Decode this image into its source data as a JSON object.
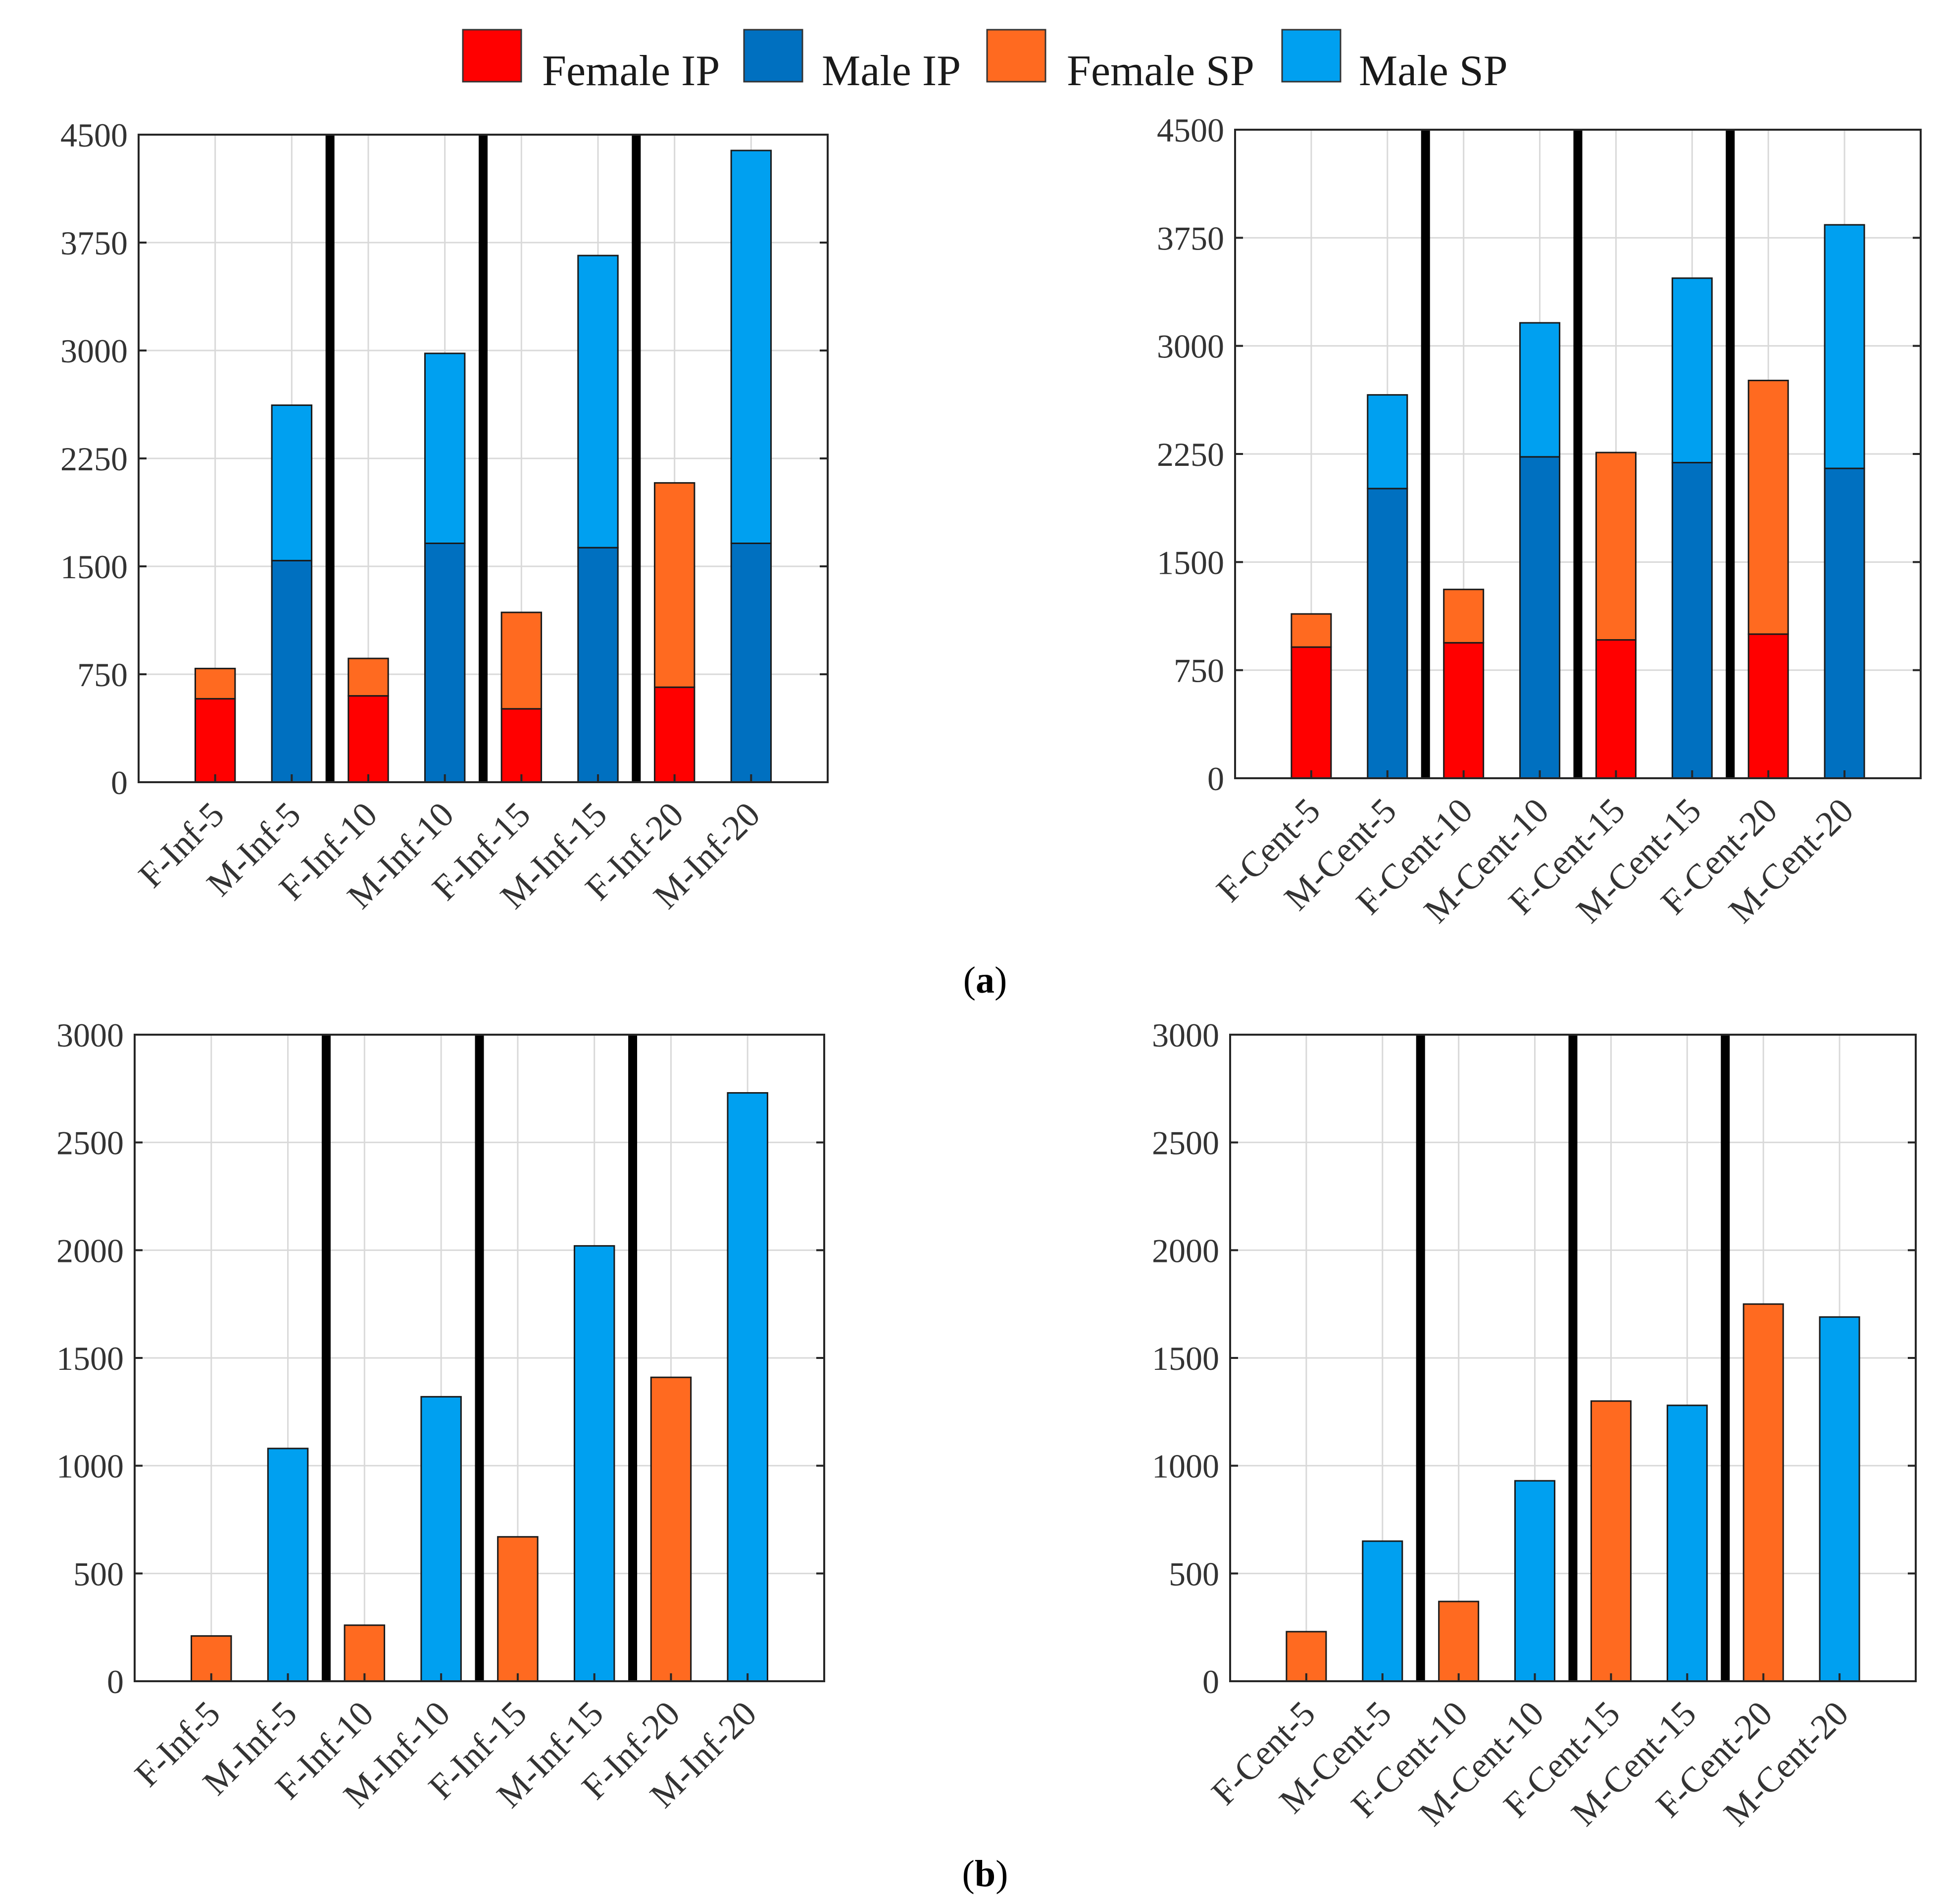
{
  "legend": [
    {
      "key": "female_ip",
      "label": "Female IP",
      "color": "#ff0000"
    },
    {
      "key": "male_ip",
      "label": "Male IP",
      "color": "#0070c0"
    },
    {
      "key": "female_sp",
      "label": "Female SP",
      "color": "#ff6a20"
    },
    {
      "key": "male_sp",
      "label": "Male SP",
      "color": "#00a0f0"
    }
  ],
  "panel_labels": {
    "a_open": "(",
    "a_letter": "a",
    "a_close": ")",
    "b_open": "(",
    "b_letter": "b",
    "b_close": ")"
  },
  "chart_data": [
    {
      "id": "a-left",
      "type": "bar",
      "stacked": true,
      "categories": [
        "F-Inf-5",
        "M-Inf-5",
        "F-Inf-10",
        "M-Inf-10",
        "F-Inf-15",
        "M-Inf-15",
        "F-Inf-20",
        "M-Inf-20"
      ],
      "ylim": [
        0,
        4500
      ],
      "yticks": [
        0,
        750,
        1500,
        2250,
        3000,
        3750,
        4500
      ],
      "grid": true,
      "separators_after": [
        1,
        3,
        5
      ],
      "bars": [
        {
          "segments": [
            {
              "series": "female_ip",
              "value": 580
            },
            {
              "series": "female_sp",
              "value": 210
            }
          ]
        },
        {
          "segments": [
            {
              "series": "male_ip",
              "value": 1540
            },
            {
              "series": "male_sp",
              "value": 1080
            }
          ]
        },
        {
          "segments": [
            {
              "series": "female_ip",
              "value": 600
            },
            {
              "series": "female_sp",
              "value": 260
            }
          ]
        },
        {
          "segments": [
            {
              "series": "male_ip",
              "value": 1660
            },
            {
              "series": "male_sp",
              "value": 1320
            }
          ]
        },
        {
          "segments": [
            {
              "series": "female_ip",
              "value": 510
            },
            {
              "series": "female_sp",
              "value": 670
            }
          ]
        },
        {
          "segments": [
            {
              "series": "male_ip",
              "value": 1630
            },
            {
              "series": "male_sp",
              "value": 2030
            }
          ]
        },
        {
          "segments": [
            {
              "series": "female_ip",
              "value": 660
            },
            {
              "series": "female_sp",
              "value": 1420
            }
          ]
        },
        {
          "segments": [
            {
              "series": "male_ip",
              "value": 1660
            },
            {
              "series": "male_sp",
              "value": 2730
            }
          ]
        }
      ]
    },
    {
      "id": "a-right",
      "type": "bar",
      "stacked": true,
      "categories": [
        "F-Cent-5",
        "M-Cent-5",
        "F-Cent-10",
        "M-Cent-10",
        "F-Cent-15",
        "M-Cent-15",
        "F-Cent-20",
        "M-Cent-20"
      ],
      "ylim": [
        0,
        4500
      ],
      "yticks": [
        0,
        750,
        1500,
        2250,
        3000,
        3750,
        4500
      ],
      "grid": true,
      "separators_after": [
        1,
        3,
        5
      ],
      "bars": [
        {
          "segments": [
            {
              "series": "female_ip",
              "value": 910
            },
            {
              "series": "female_sp",
              "value": 230
            }
          ]
        },
        {
          "segments": [
            {
              "series": "male_ip",
              "value": 2010
            },
            {
              "series": "male_sp",
              "value": 650
            }
          ]
        },
        {
          "segments": [
            {
              "series": "female_ip",
              "value": 940
            },
            {
              "series": "female_sp",
              "value": 370
            }
          ]
        },
        {
          "segments": [
            {
              "series": "male_ip",
              "value": 2230
            },
            {
              "series": "male_sp",
              "value": 930
            }
          ]
        },
        {
          "segments": [
            {
              "series": "female_ip",
              "value": 960
            },
            {
              "series": "female_sp",
              "value": 1300
            }
          ]
        },
        {
          "segments": [
            {
              "series": "male_ip",
              "value": 2190
            },
            {
              "series": "male_sp",
              "value": 1280
            }
          ]
        },
        {
          "segments": [
            {
              "series": "female_ip",
              "value": 1000
            },
            {
              "series": "female_sp",
              "value": 1760
            }
          ]
        },
        {
          "segments": [
            {
              "series": "male_ip",
              "value": 2150
            },
            {
              "series": "male_sp",
              "value": 1690
            }
          ]
        }
      ]
    },
    {
      "id": "b-left",
      "type": "bar",
      "stacked": false,
      "categories": [
        "F-Inf-5",
        "M-Inf-5",
        "F-Inf-10",
        "M-Inf-10",
        "F-Inf-15",
        "M-Inf-15",
        "F-Inf-20",
        "M-Inf-20"
      ],
      "ylim": [
        0,
        3000
      ],
      "yticks": [
        0,
        500,
        1000,
        1500,
        2000,
        2500,
        3000
      ],
      "grid": true,
      "separators_after": [
        1,
        3,
        5
      ],
      "bars": [
        {
          "segments": [
            {
              "series": "female_sp",
              "value": 210
            }
          ]
        },
        {
          "segments": [
            {
              "series": "male_sp",
              "value": 1080
            }
          ]
        },
        {
          "segments": [
            {
              "series": "female_sp",
              "value": 260
            }
          ]
        },
        {
          "segments": [
            {
              "series": "male_sp",
              "value": 1320
            }
          ]
        },
        {
          "segments": [
            {
              "series": "female_sp",
              "value": 670
            }
          ]
        },
        {
          "segments": [
            {
              "series": "male_sp",
              "value": 2020
            }
          ]
        },
        {
          "segments": [
            {
              "series": "female_sp",
              "value": 1410
            }
          ]
        },
        {
          "segments": [
            {
              "series": "male_sp",
              "value": 2730
            }
          ]
        }
      ]
    },
    {
      "id": "b-right",
      "type": "bar",
      "stacked": false,
      "categories": [
        "F-Cent-5",
        "M-Cent-5",
        "F-Cent-10",
        "M-Cent-10",
        "F-Cent-15",
        "M-Cent-15",
        "F-Cent-20",
        "M-Cent-20"
      ],
      "ylim": [
        0,
        3000
      ],
      "yticks": [
        0,
        500,
        1000,
        1500,
        2000,
        2500,
        3000
      ],
      "grid": true,
      "separators_after": [
        1,
        3,
        5
      ],
      "bars": [
        {
          "segments": [
            {
              "series": "female_sp",
              "value": 230
            }
          ]
        },
        {
          "segments": [
            {
              "series": "male_sp",
              "value": 650
            }
          ]
        },
        {
          "segments": [
            {
              "series": "female_sp",
              "value": 370
            }
          ]
        },
        {
          "segments": [
            {
              "series": "male_sp",
              "value": 930
            }
          ]
        },
        {
          "segments": [
            {
              "series": "female_sp",
              "value": 1300
            }
          ]
        },
        {
          "segments": [
            {
              "series": "male_sp",
              "value": 1280
            }
          ]
        },
        {
          "segments": [
            {
              "series": "female_sp",
              "value": 1750
            }
          ]
        },
        {
          "segments": [
            {
              "series": "male_sp",
              "value": 1690
            }
          ]
        }
      ]
    }
  ]
}
